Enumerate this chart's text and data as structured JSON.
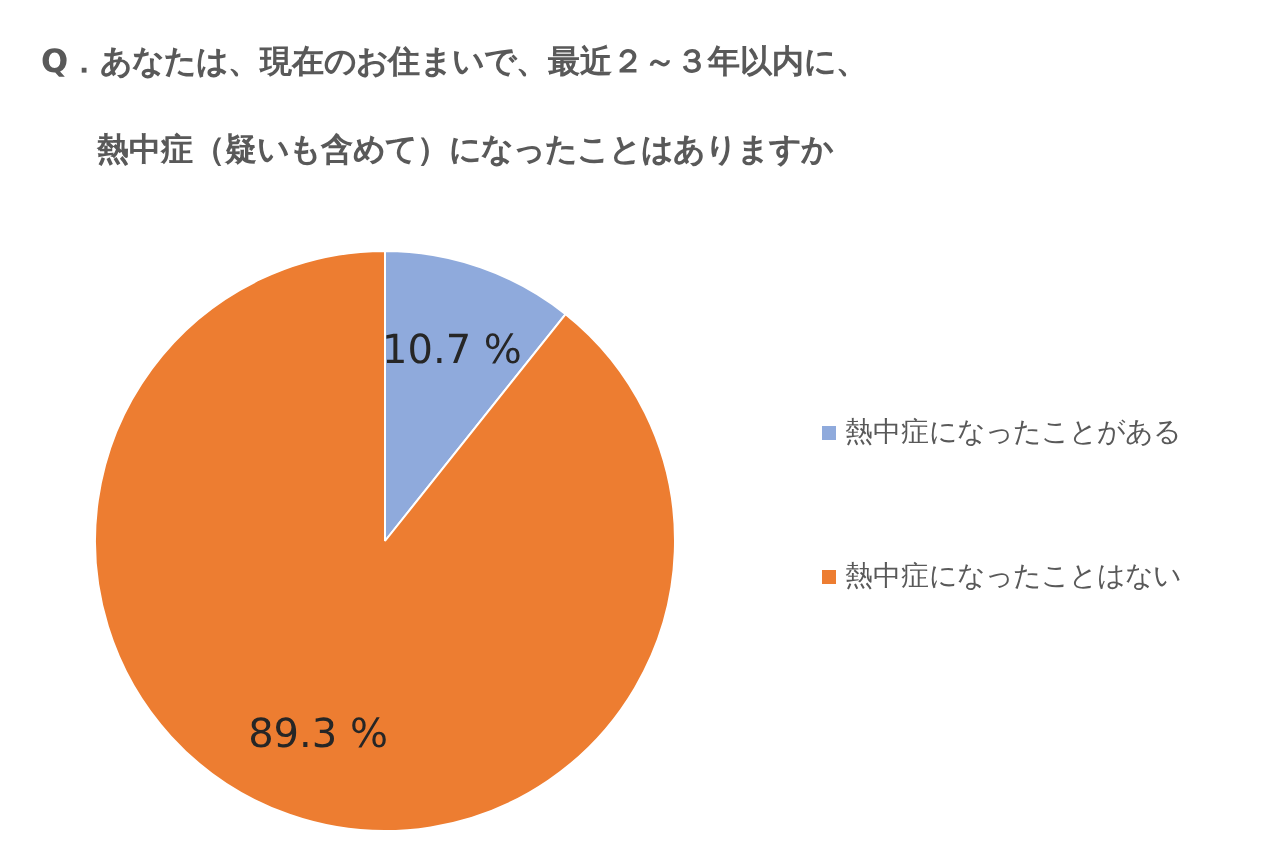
{
  "chart_data": {
    "type": "pie",
    "title": "Q．あなたは、現在のお住まいで、最近２～３年以内に、",
    "subtitle": "熱中症（疑いも含めて）になったことはありますか",
    "categories": [
      "熱中症になったことがある",
      "熱中症になったことはない"
    ],
    "values": [
      10.7,
      89.3
    ],
    "colors": [
      "#8faadc",
      "#ed7d31"
    ],
    "value_labels": [
      "10.7 %",
      "89.3 %"
    ],
    "legend": "right"
  }
}
